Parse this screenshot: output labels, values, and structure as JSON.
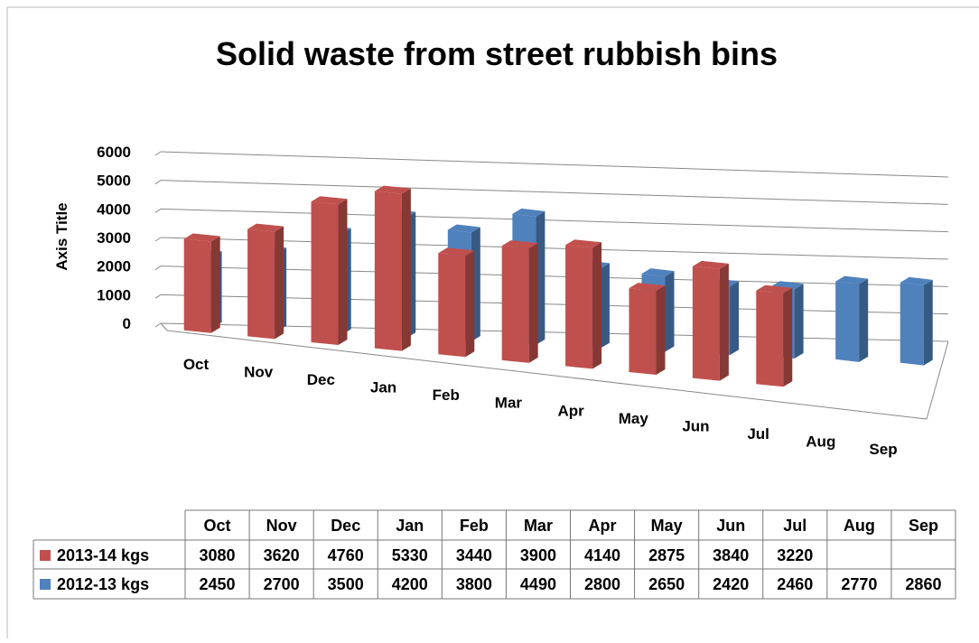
{
  "chart_data": {
    "type": "bar3d",
    "title": "Solid waste from street rubbish bins",
    "y_label": "Axis Title",
    "categories": [
      "Oct",
      "Nov",
      "Dec",
      "Jan",
      "Feb",
      "Mar",
      "Apr",
      "May",
      "Jun",
      "Jul",
      "Aug",
      "Sep"
    ],
    "series": [
      {
        "name": "2013-14 kgs",
        "color": "#c0504d",
        "values": [
          3080,
          3620,
          4760,
          5330,
          3440,
          3900,
          4140,
          2875,
          3840,
          3220,
          null,
          null
        ]
      },
      {
        "name": "2012-13 kgs",
        "color": "#4f81bd",
        "values": [
          2450,
          2700,
          3500,
          4200,
          3800,
          4490,
          2800,
          2650,
          2420,
          2460,
          2770,
          2860
        ]
      }
    ],
    "ylim": [
      0,
      6000
    ],
    "yticks": [
      0,
      1000,
      2000,
      3000,
      4000,
      5000,
      6000
    ],
    "grid": true,
    "data_table": true
  }
}
